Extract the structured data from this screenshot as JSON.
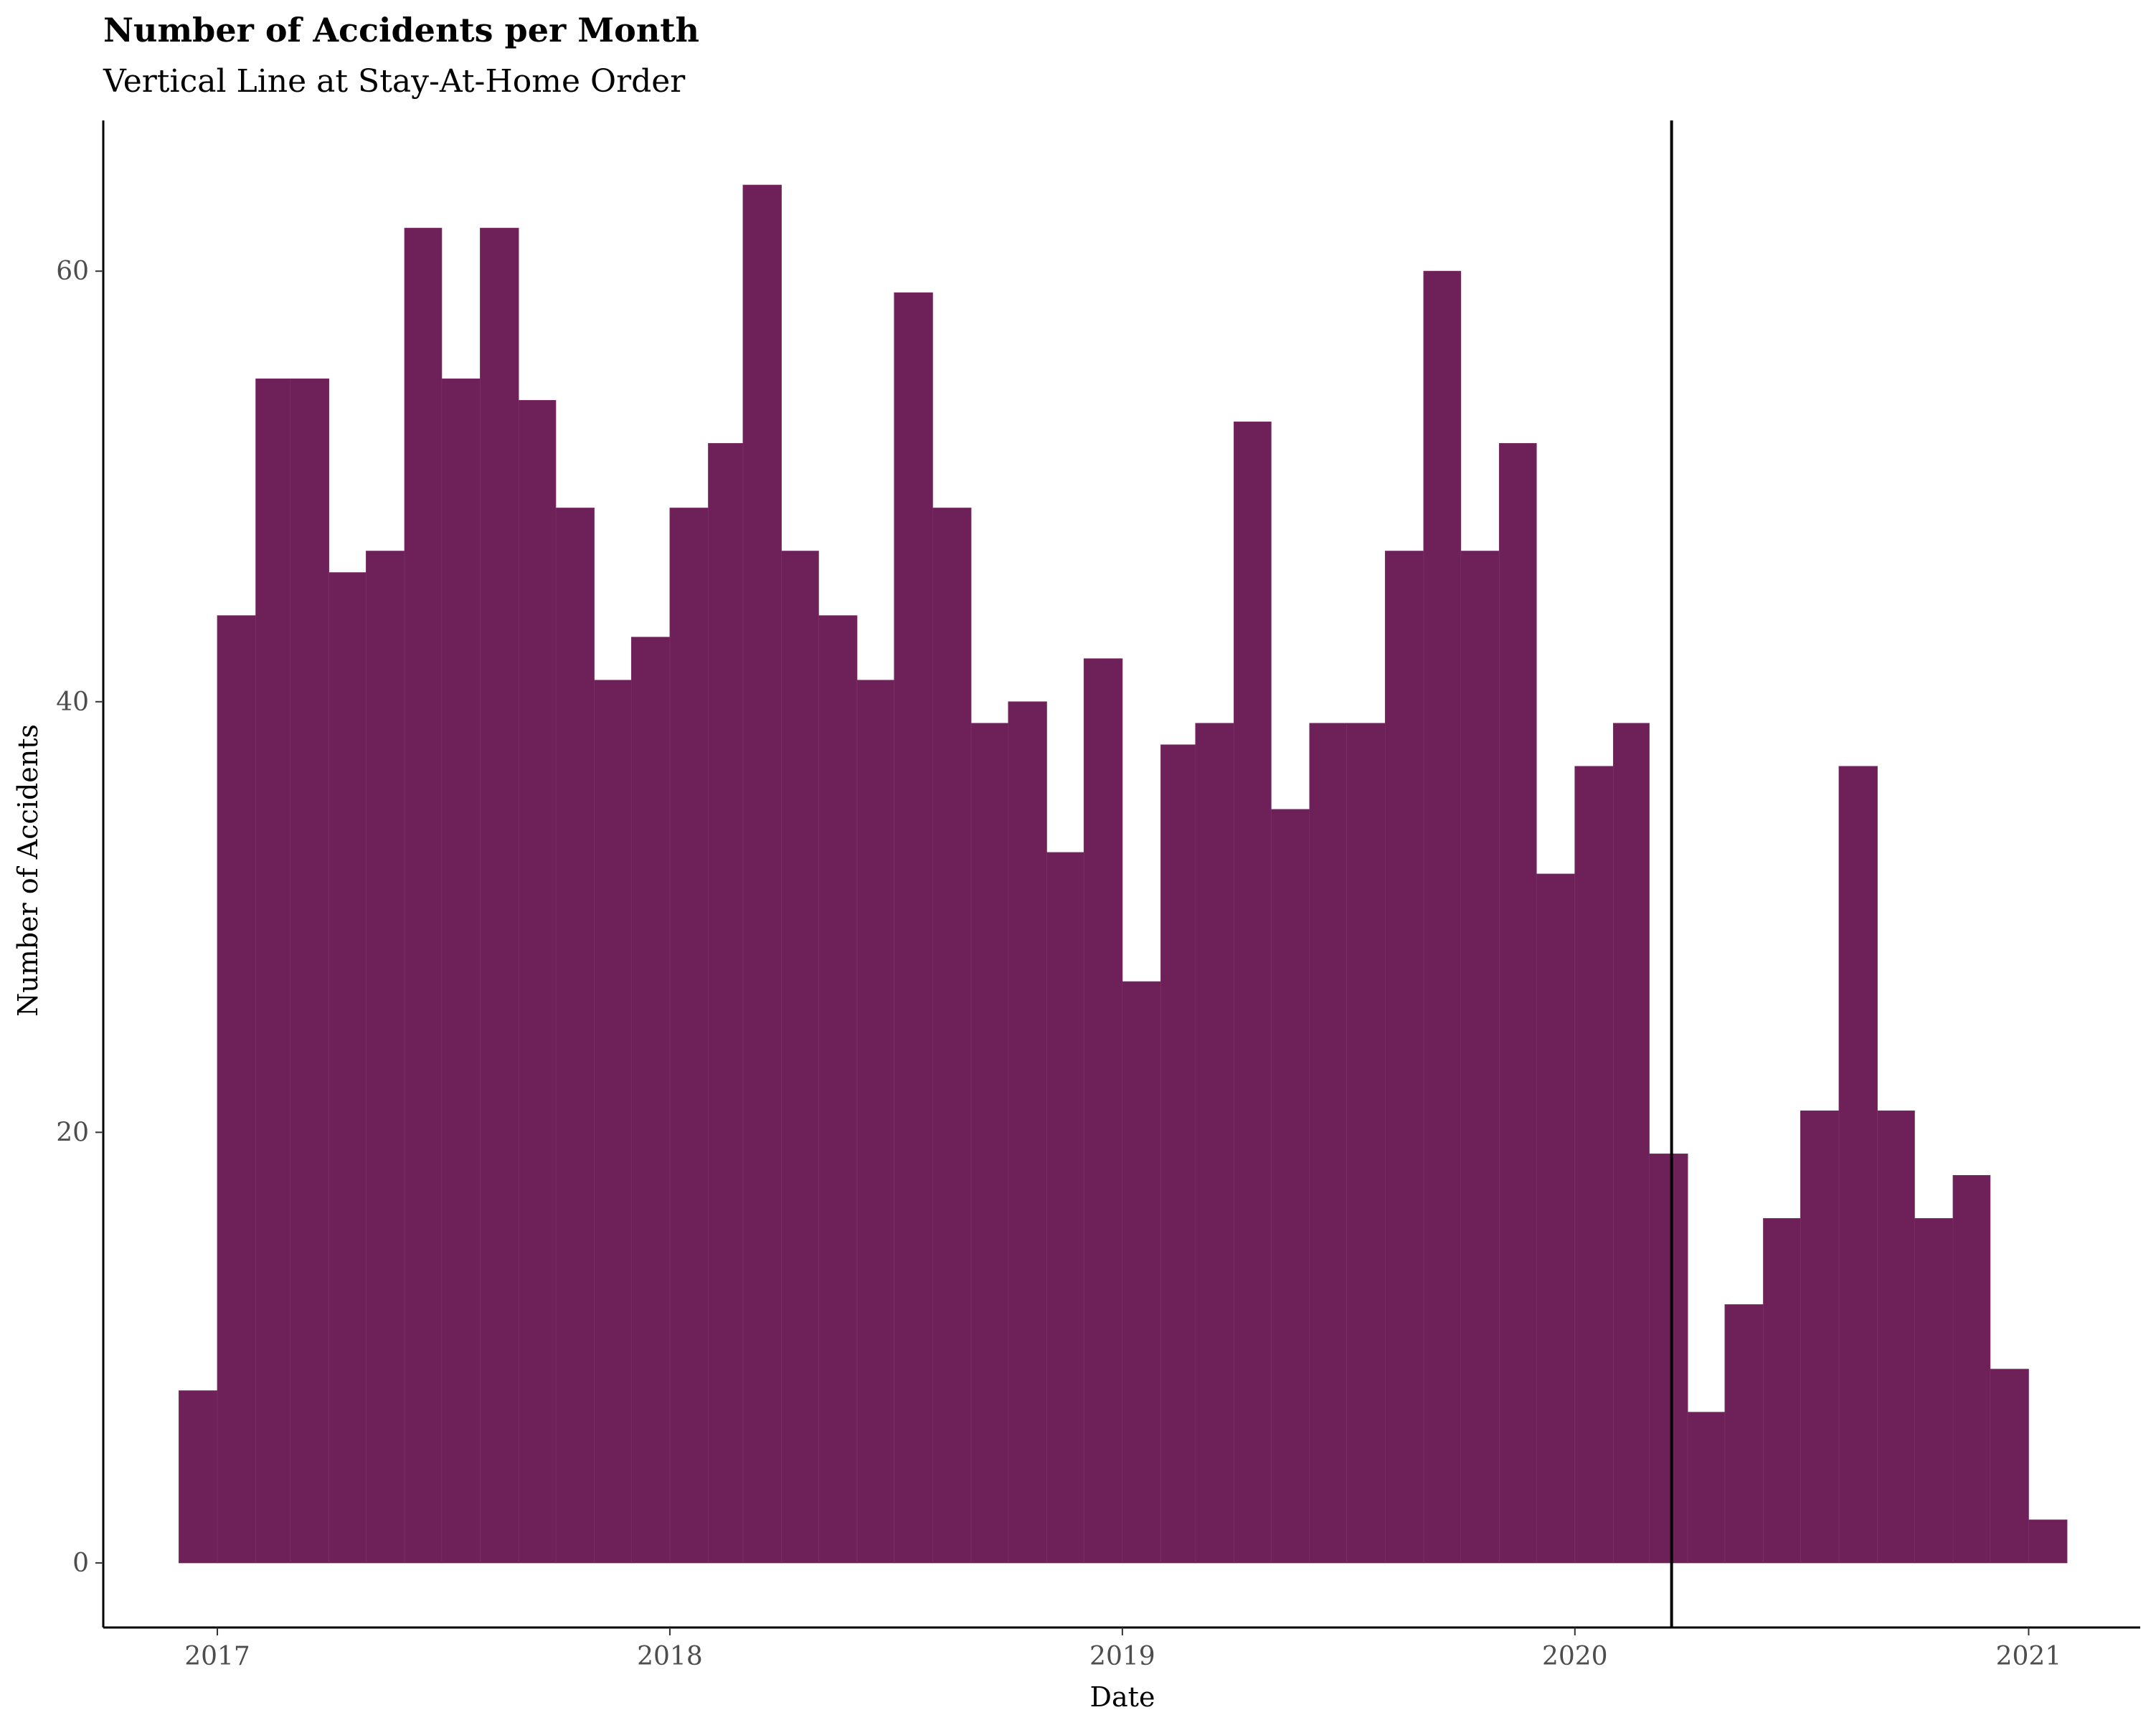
{
  "chart_data": {
    "type": "bar",
    "title": "Number of Accidents per Month",
    "subtitle": "Vertical Line at Stay-At-Home Order",
    "xlabel": "Date",
    "ylabel": "Number of Accidents",
    "color": "#6d2158",
    "x_ticks": [
      "2017",
      "2018",
      "2019",
      "2020",
      "2021"
    ],
    "y_ticks": [
      0,
      20,
      40,
      60
    ],
    "xlim": [
      "2016-10-01",
      "2021-04-01"
    ],
    "ylim": [
      -3,
      67
    ],
    "grid": false,
    "categories": [
      "2016-12",
      "2017-01",
      "2017-02",
      "2017-03",
      "2017-04",
      "2017-05",
      "2017-06",
      "2017-07",
      "2017-08",
      "2017-09",
      "2017-10",
      "2017-11",
      "2017-12",
      "2018-01",
      "2018-02",
      "2018-03",
      "2018-04",
      "2018-05",
      "2018-06",
      "2018-07",
      "2018-08",
      "2018-09",
      "2018-10",
      "2018-11",
      "2018-12",
      "2019-01",
      "2019-02",
      "2019-03",
      "2019-04",
      "2019-05",
      "2019-06",
      "2019-07",
      "2019-08",
      "2019-09",
      "2019-10",
      "2019-11",
      "2019-12",
      "2020-01",
      "2020-02",
      "2020-03",
      "2020-04",
      "2020-05",
      "2020-06",
      "2020-07",
      "2020-08",
      "2020-09",
      "2020-10",
      "2020-11",
      "2020-12",
      "2021-01"
    ],
    "values": [
      8,
      44,
      55,
      55,
      46,
      47,
      62,
      55,
      62,
      54,
      49,
      41,
      43,
      49,
      52,
      64,
      47,
      44,
      41,
      59,
      49,
      39,
      40,
      33,
      42,
      27,
      38,
      39,
      53,
      35,
      39,
      39,
      47,
      60,
      47,
      52,
      32,
      37,
      39,
      19,
      7,
      12,
      16,
      21,
      37,
      21,
      16,
      18,
      9,
      2
    ],
    "vline": "2020-03-19"
  }
}
